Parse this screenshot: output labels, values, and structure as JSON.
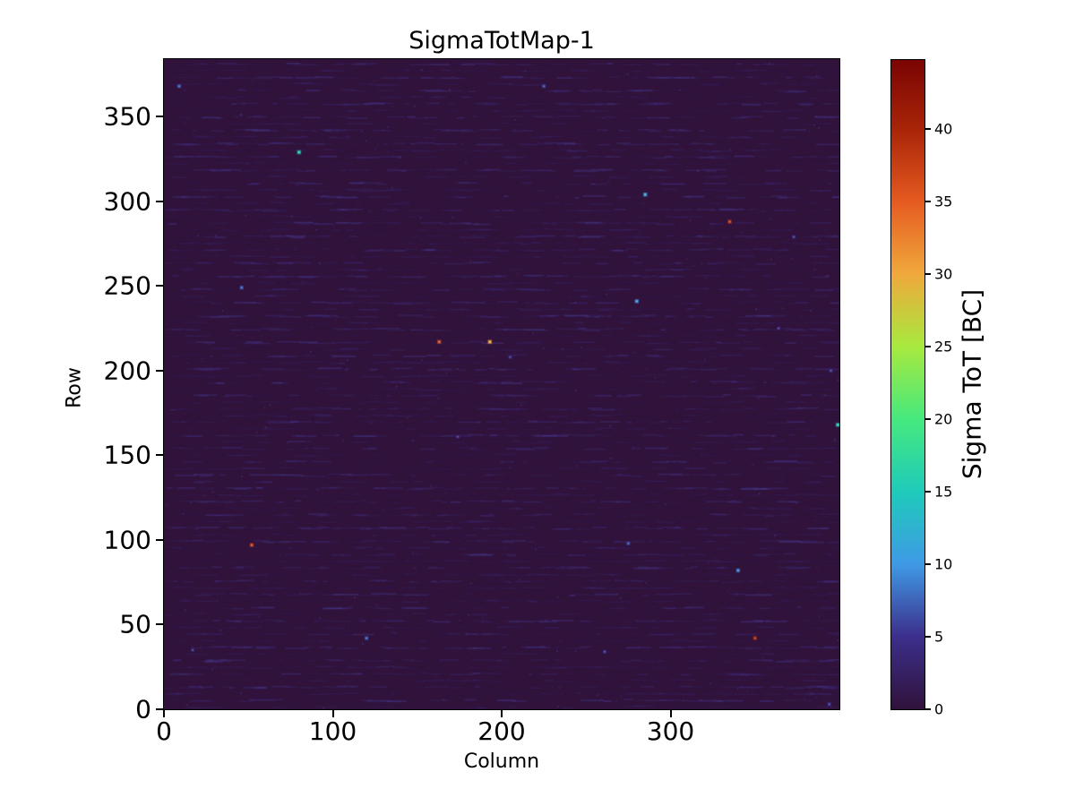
{
  "figure": {
    "title": "SigmaTotMap-1",
    "background_color": "#ffffff"
  },
  "chart_data": {
    "type": "heatmap",
    "title": "SigmaTotMap-1",
    "xlabel": "Column",
    "ylabel": "Row",
    "xlim": [
      0,
      400
    ],
    "ylim": [
      0,
      384
    ],
    "xticks": [
      0,
      100,
      200,
      300
    ],
    "yticks": [
      0,
      50,
      100,
      150,
      200,
      250,
      300,
      350
    ],
    "grid": false,
    "base_color": "#30123b",
    "noise": {
      "seed": 1337,
      "row_spacing": 7.4,
      "dashes_per_row": 52,
      "dash_colors": [
        "#3e2c76",
        "#45348a",
        "#4a3d9c",
        "#383060",
        "#524bb0"
      ],
      "speck_color": "#6a74e0",
      "speck_count": 220
    },
    "hot_pixels": [
      {
        "col": 9,
        "row": 368,
        "value": 7
      },
      {
        "col": 225,
        "row": 368,
        "value": 6
      },
      {
        "col": 80,
        "row": 329,
        "value": 16
      },
      {
        "col": 285,
        "row": 304,
        "value": 11
      },
      {
        "col": 335,
        "row": 288,
        "value": 38
      },
      {
        "col": 373,
        "row": 279,
        "value": 5
      },
      {
        "col": 46,
        "row": 249,
        "value": 7
      },
      {
        "col": 280,
        "row": 241,
        "value": 10
      },
      {
        "col": 364,
        "row": 225,
        "value": 4
      },
      {
        "col": 163,
        "row": 217,
        "value": 36
      },
      {
        "col": 193,
        "row": 217,
        "value": 30
      },
      {
        "col": 205,
        "row": 208,
        "value": 4
      },
      {
        "col": 395,
        "row": 200,
        "value": 5
      },
      {
        "col": 399,
        "row": 168,
        "value": 15
      },
      {
        "col": 174,
        "row": 161,
        "value": 4
      },
      {
        "col": 52,
        "row": 97,
        "value": 37
      },
      {
        "col": 275,
        "row": 98,
        "value": 6
      },
      {
        "col": 340,
        "row": 82,
        "value": 9
      },
      {
        "col": 120,
        "row": 42,
        "value": 7
      },
      {
        "col": 350,
        "row": 42,
        "value": 39
      },
      {
        "col": 17,
        "row": 35,
        "value": 4
      },
      {
        "col": 261,
        "row": 34,
        "value": 5
      },
      {
        "col": 394,
        "row": 3,
        "value": 5
      }
    ],
    "colorbar": {
      "label": "Sigma ToT [BC]",
      "vmin": 0,
      "vmax": 44.75,
      "ticks": [
        0,
        5,
        10,
        15,
        20,
        25,
        30,
        35,
        40
      ],
      "colormap": "turbo",
      "stops": [
        [
          0.0,
          "#30123b"
        ],
        [
          0.112,
          "#3c2f8c"
        ],
        [
          0.224,
          "#3f9ae6"
        ],
        [
          0.335,
          "#1ecbba"
        ],
        [
          0.447,
          "#46e97e"
        ],
        [
          0.559,
          "#a8e93e"
        ],
        [
          0.671,
          "#f0a83c"
        ],
        [
          0.783,
          "#e55a20"
        ],
        [
          0.894,
          "#a82408"
        ],
        [
          1.0,
          "#7a0403"
        ]
      ]
    }
  }
}
